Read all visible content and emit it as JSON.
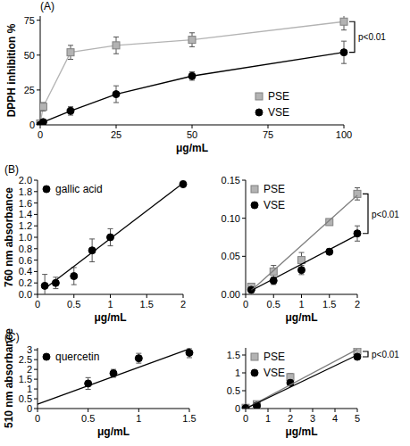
{
  "chart_data": [
    {
      "type": "line",
      "panel_label": "(A)",
      "x_label": "μg/mL",
      "y_label": "DPPH inhibition %",
      "xlim": [
        0,
        100
      ],
      "ylim": [
        0,
        78
      ],
      "xticks": [
        0,
        25,
        50,
        75,
        100
      ],
      "yticks": [
        0,
        25,
        50,
        75
      ],
      "legend": "lower right",
      "annotations": [
        "p<0.01"
      ],
      "series": [
        {
          "name": "PSE",
          "color": "#b3b3b3",
          "marker": "square",
          "type": "line",
          "x": [
            0,
            1,
            10,
            25,
            50,
            100
          ],
          "values": [
            1,
            13,
            52,
            57,
            61,
            74
          ],
          "errors": [
            1,
            3,
            5,
            6,
            5,
            6
          ]
        },
        {
          "name": "VSE",
          "color": "#000000",
          "marker": "circle",
          "type": "line",
          "x": [
            0,
            1,
            10,
            25,
            50,
            100
          ],
          "values": [
            0,
            2,
            10,
            22,
            35,
            52
          ],
          "errors": [
            0.5,
            1,
            3,
            6,
            3,
            8
          ]
        }
      ]
    },
    {
      "type": "scatter",
      "panel_label": "(B)",
      "x_label": "μg/mL",
      "y_label": "760 nm absorbance",
      "xlim": [
        0,
        2
      ],
      "ylim": [
        0,
        2
      ],
      "xticks": [
        0,
        0.5,
        1,
        1.5,
        2
      ],
      "yticks": [
        {
          "value": 0,
          "label": "0.0"
        },
        {
          "value": 0.2,
          "label": "0.2"
        },
        {
          "value": 0.4,
          "label": "0.4"
        },
        {
          "value": 0.6,
          "label": "0.6"
        },
        {
          "value": 0.8,
          "label": "0.8"
        },
        {
          "value": 1,
          "label": "1.0"
        },
        {
          "value": 1.2,
          "label": "1.2"
        },
        {
          "value": 1.4,
          "label": "1.4"
        },
        {
          "value": 1.6,
          "label": "1.6"
        },
        {
          "value": 1.8,
          "label": "1.8"
        },
        {
          "value": 2,
          "label": "2.0"
        }
      ],
      "legend": "upper left",
      "series": [
        {
          "name": "gallic acid",
          "color": "#000000",
          "marker": "circle",
          "type": "scatter",
          "x": [
            0.1,
            0.25,
            0.5,
            0.75,
            1,
            2
          ],
          "values": [
            0.15,
            0.2,
            0.32,
            0.77,
            1.0,
            1.93
          ],
          "errors": [
            0.2,
            0.1,
            0.15,
            0.2,
            0.15,
            0.05
          ]
        },
        {
          "color": "#000000",
          "marker": "none",
          "type": "line",
          "x": [
            0.1,
            2
          ],
          "values": [
            0.1,
            1.95
          ]
        }
      ]
    },
    {
      "type": "scatter",
      "x_label": "μg/mL",
      "xlim": [
        0,
        2
      ],
      "ylim": [
        0,
        0.15
      ],
      "xticks": [
        0,
        0.5,
        1,
        1.5,
        2
      ],
      "yticks": [
        {
          "value": 0,
          "label": "0.00"
        },
        {
          "value": 0.05,
          "label": "0.05"
        },
        {
          "value": 0.1,
          "label": "0.10"
        },
        {
          "value": 0.15,
          "label": "0.15"
        }
      ],
      "legend": "upper left",
      "annotations": [
        "p<0.01"
      ],
      "series": [
        {
          "name": "PSE",
          "color": "#b3b3b3",
          "marker": "square",
          "type": "scatter",
          "x": [
            0.1,
            0.5,
            1,
            1.5,
            2
          ],
          "values": [
            0.01,
            0.03,
            0.045,
            0.095,
            0.132
          ],
          "errors": [
            0.003,
            0.008,
            0.01,
            0.004,
            0.008
          ]
        },
        {
          "name": "VSE",
          "color": "#000000",
          "marker": "circle",
          "type": "scatter",
          "x": [
            0.1,
            0.5,
            1,
            1.5,
            2
          ],
          "values": [
            0.006,
            0.018,
            0.032,
            0.056,
            0.08
          ],
          "errors": [
            0.003,
            0.005,
            0.006,
            0.004,
            0.01
          ]
        },
        {
          "color": "#7f7f7f",
          "marker": "none",
          "type": "line",
          "x": [
            0.1,
            2
          ],
          "values": [
            0.005,
            0.13
          ]
        },
        {
          "color": "#000000",
          "marker": "none",
          "type": "line",
          "x": [
            0.1,
            2
          ],
          "values": [
            0.005,
            0.078
          ]
        }
      ]
    },
    {
      "type": "scatter",
      "panel_label": "(C)",
      "x_label": "μg/mL",
      "y_label": "510 nm absorbance",
      "xlim": [
        0,
        1.5
      ],
      "ylim": [
        0,
        3.1
      ],
      "xticks": [
        0,
        0.5,
        1,
        1.5
      ],
      "yticks": [
        0,
        0.5,
        1,
        1.5,
        2,
        2.5,
        3
      ],
      "legend": "upper left",
      "series": [
        {
          "name": "quercetin",
          "color": "#000000",
          "marker": "circle",
          "type": "scatter",
          "x": [
            0.5,
            0.75,
            1,
            1.5
          ],
          "values": [
            1.28,
            1.8,
            2.57,
            2.85
          ],
          "errors": [
            0.3,
            0.2,
            0.25,
            0.25
          ]
        },
        {
          "color": "#000000",
          "marker": "none",
          "type": "line",
          "x": [
            0,
            1.5
          ],
          "values": [
            0.22,
            3.05
          ]
        }
      ]
    },
    {
      "type": "scatter",
      "x_label": "μg/mL",
      "xlim": [
        0,
        5
      ],
      "ylim": [
        0,
        1.7
      ],
      "xticks": [
        0,
        1,
        2,
        3,
        4,
        5
      ],
      "yticks": [
        0,
        0.5,
        1,
        1.5
      ],
      "legend": "upper left",
      "annotations": [
        "p<0.01"
      ],
      "series": [
        {
          "name": "PSE",
          "color": "#b3b3b3",
          "marker": "square",
          "type": "scatter",
          "x": [
            0,
            0.5,
            2,
            5
          ],
          "values": [
            0.02,
            0.12,
            0.88,
            1.6
          ],
          "errors": [
            0.01,
            0.05,
            0.1,
            0.06
          ]
        },
        {
          "name": "VSE",
          "color": "#000000",
          "marker": "circle",
          "type": "scatter",
          "x": [
            0,
            0.5,
            2,
            5
          ],
          "values": [
            0.01,
            0.08,
            0.72,
            1.45
          ],
          "errors": [
            0.01,
            0.05,
            0.08,
            0.05
          ]
        },
        {
          "color": "#7f7f7f",
          "marker": "none",
          "type": "line",
          "x": [
            0,
            5
          ],
          "values": [
            0,
            1.66
          ]
        },
        {
          "color": "#000000",
          "marker": "none",
          "type": "line",
          "x": [
            0,
            5
          ],
          "values": [
            0,
            1.5
          ]
        }
      ]
    }
  ]
}
